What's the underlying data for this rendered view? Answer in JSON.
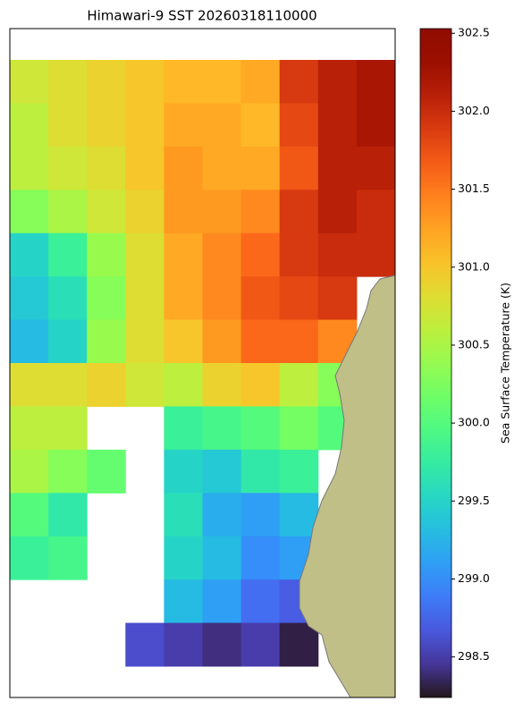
{
  "chart_data": {
    "type": "heatmap",
    "title": "Himawari-9 SST 20260318110000",
    "colorbar_label": "Sea Surface Temperature (K)",
    "colormap": "turbo",
    "clim": [
      298.24,
      302.53
    ],
    "cticks": [
      298.5,
      {
        "value": 299,
        "label": "299.0"
      },
      299.5,
      {
        "value": 300,
        "label": "300.0"
      },
      300.5,
      {
        "value": 301,
        "label": "301.0"
      },
      301.5,
      {
        "value": 302,
        "label": "302.0"
      },
      302.5
    ],
    "grid": [
      [
        300.7,
        300.8,
        300.9,
        301.0,
        301.1,
        301.1,
        301.2,
        301.9,
        302.1,
        302.2
      ],
      [
        300.6,
        300.8,
        300.9,
        301.0,
        301.2,
        301.2,
        301.1,
        301.8,
        302.1,
        302.2
      ],
      [
        300.6,
        300.7,
        300.8,
        301.0,
        301.3,
        301.2,
        301.2,
        301.7,
        302.1,
        302.1
      ],
      [
        300.3,
        300.5,
        300.7,
        300.9,
        301.3,
        301.3,
        301.4,
        301.9,
        302.1,
        302.0
      ],
      [
        299.5,
        299.8,
        300.4,
        300.8,
        301.2,
        301.4,
        301.6,
        301.9,
        302.0,
        302.0
      ],
      [
        299.4,
        299.6,
        300.3,
        300.8,
        301.2,
        301.4,
        301.7,
        301.8,
        301.9,
        null
      ],
      [
        299.3,
        299.5,
        300.4,
        300.8,
        301.0,
        301.3,
        301.6,
        301.6,
        301.4,
        null
      ],
      [
        300.8,
        300.8,
        300.9,
        300.7,
        300.6,
        300.9,
        301.0,
        300.6,
        300.3,
        null
      ],
      [
        300.6,
        300.6,
        null,
        null,
        299.8,
        299.9,
        300.0,
        300.2,
        300.0,
        null
      ],
      [
        300.5,
        300.3,
        300.1,
        null,
        299.5,
        299.4,
        299.7,
        299.8,
        null,
        null
      ],
      [
        300.0,
        299.7,
        null,
        null,
        299.6,
        299.2,
        299.1,
        299.3,
        null,
        null
      ],
      [
        299.8,
        299.9,
        null,
        null,
        299.5,
        299.3,
        299.0,
        299.1,
        null,
        null
      ],
      [
        null,
        null,
        null,
        null,
        299.3,
        299.1,
        298.8,
        298.7,
        null,
        null
      ],
      [
        null,
        null,
        null,
        298.6,
        298.5,
        298.4,
        298.5,
        298.3,
        null,
        null
      ]
    ]
  }
}
